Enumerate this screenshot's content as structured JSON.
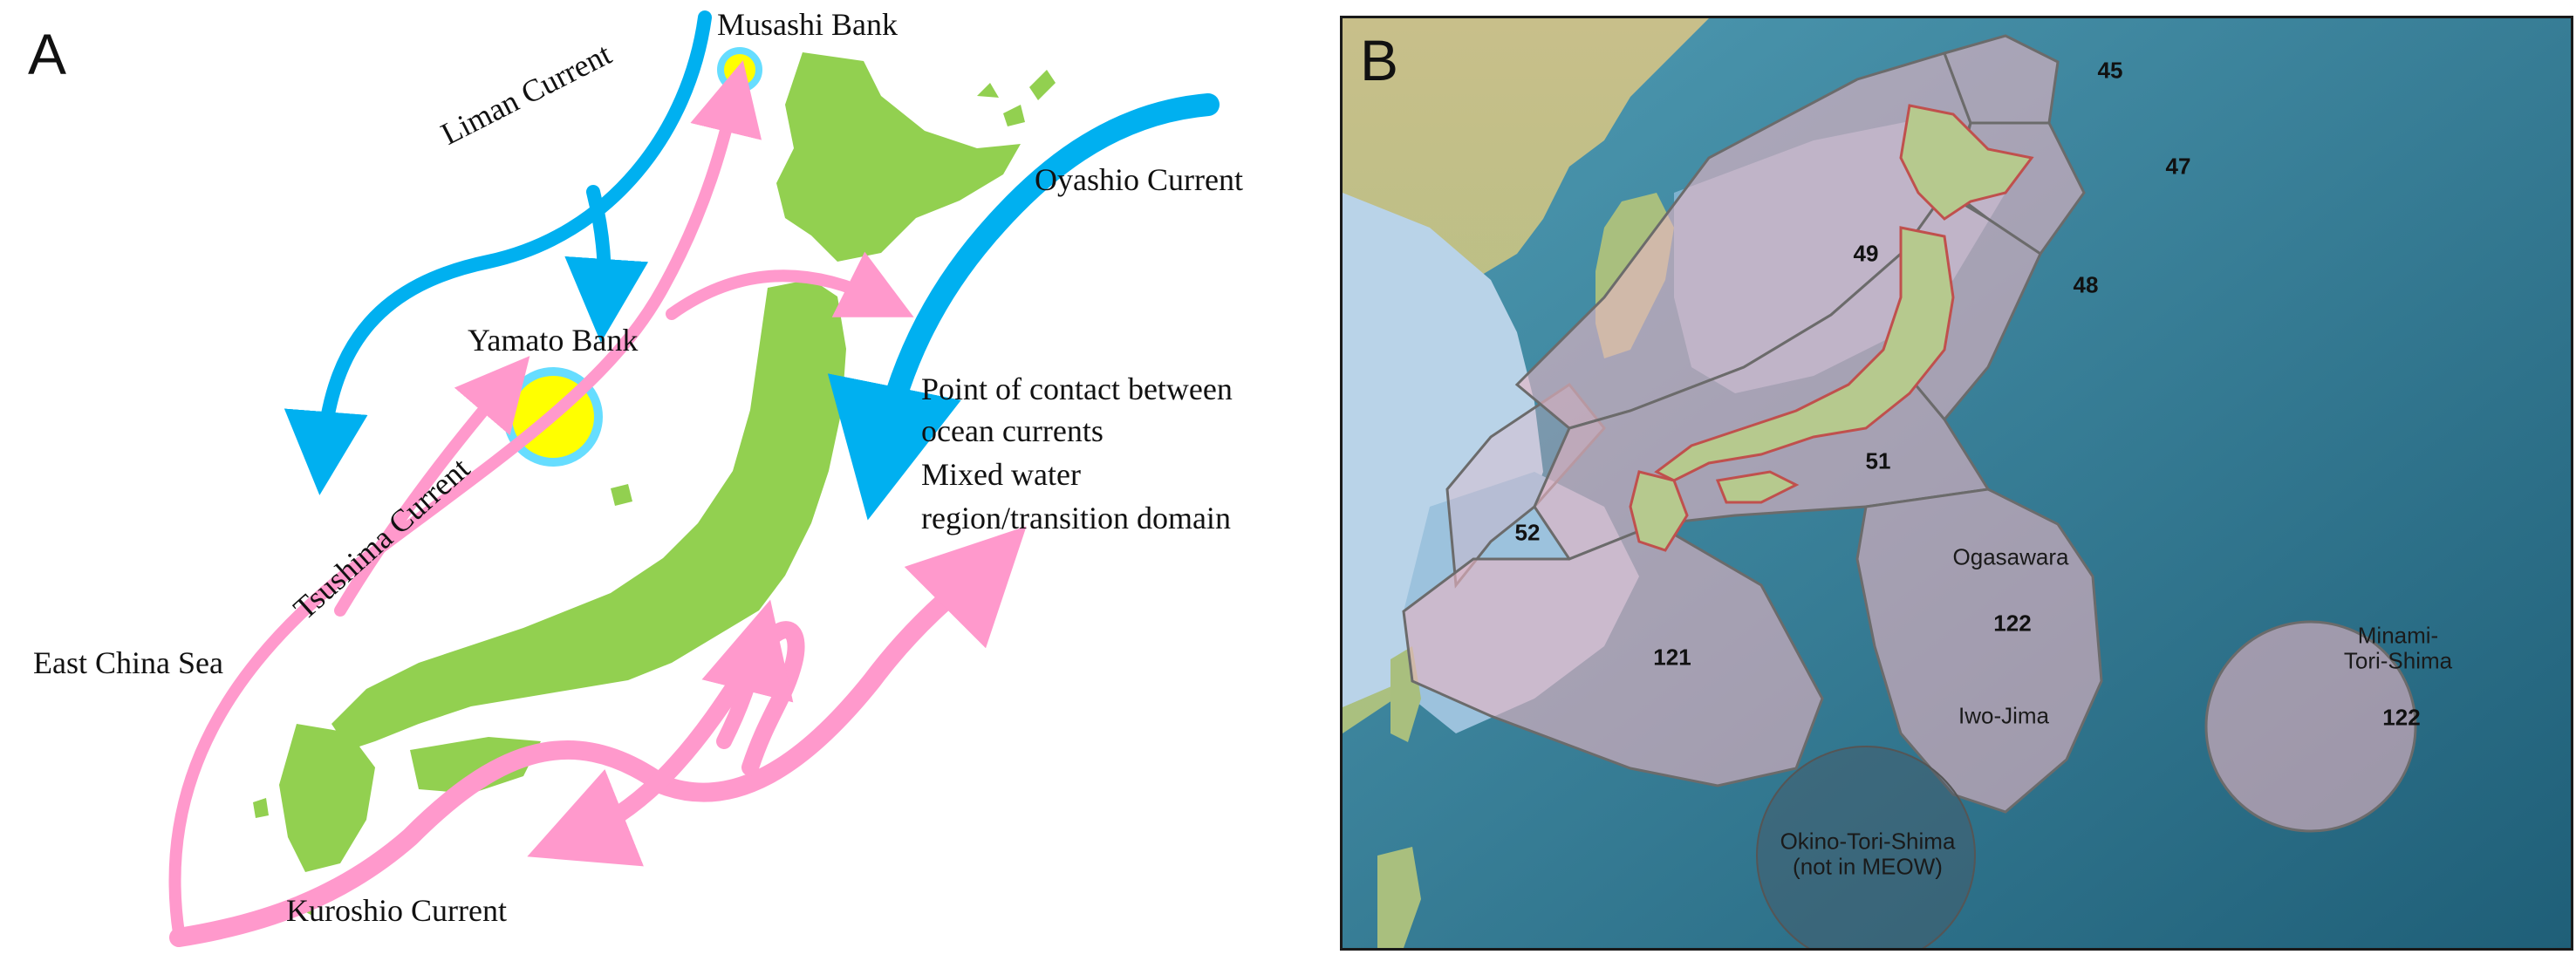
{
  "panel_a": {
    "letter": "A",
    "labels": {
      "musashi_bank": "Musashi Bank",
      "liman_current": "Liman Current",
      "oyashio_current": "Oyashio Current",
      "yamato_bank": "Yamato Bank",
      "tsushima_current": "Tsushima Current",
      "contact_line1": "Point of contact between",
      "contact_line2": "ocean currents",
      "mixed_line1": "Mixed water",
      "mixed_line2": "region/transition domain",
      "east_china_sea": "East China Sea",
      "kuroshio_current": "Kuroshio Current"
    },
    "colors": {
      "land": "#92d050",
      "cold_current": "#00b0f0",
      "warm_current": "#ff99cc",
      "bank_fill": "#ffff00",
      "bank_ring": "#66ddff"
    }
  },
  "panel_b": {
    "letter": "B",
    "ecoregions": {
      "r45": "45",
      "r47": "47",
      "r48": "48",
      "r49": "49",
      "r51": "51",
      "r52": "52",
      "r121": "121",
      "r122_ogasawara": "122",
      "r122_minami": "122"
    },
    "place_names": {
      "ogasawara": "Ogasawara",
      "iwo_jima": "Iwo-Jima",
      "minami_tori_shima": "Minami-\nTori-Shima",
      "okino_tori_shima": "Okino-Tori-Shima\n(not in MEOW)"
    },
    "colors": {
      "ocean_deep": "#2a6f85",
      "ocean_shelf": "#a9cbe3",
      "land": "#b9c98f",
      "region_fill": "#e8b4c4",
      "region_border": "#c0504d"
    }
  }
}
